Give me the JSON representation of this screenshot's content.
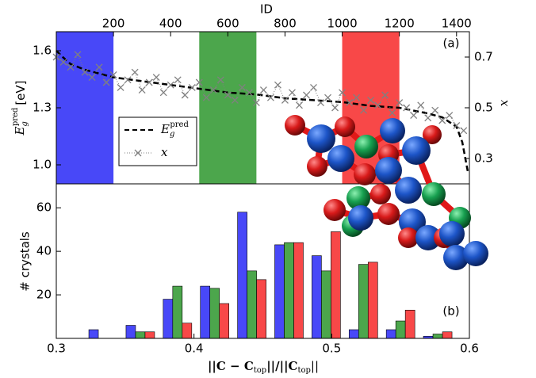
{
  "chart_data": [
    {
      "type": "line",
      "xlabel": "ID",
      "panel_label": "(a)",
      "ylabel": {
        "base": "E",
        "sub": "g",
        "sup": "pred",
        "unit": "[eV]"
      },
      "y2label": "x",
      "xlim": [
        0,
        1445
      ],
      "xticks": [
        200,
        400,
        600,
        800,
        1000,
        1200,
        1400
      ],
      "ylim": [
        0.9,
        1.7
      ],
      "yticks": [
        {
          "value": 1,
          "label": "1.0"
        },
        1.3,
        1.6
      ],
      "y2lim": [
        0.2,
        0.8
      ],
      "y2ticks": [
        0.3,
        0.5,
        0.7
      ],
      "spans": [
        {
          "x": [
            0,
            200
          ],
          "color": "#4848f8"
        },
        {
          "x": [
            500,
            700
          ],
          "color": "#4ca64c"
        },
        {
          "x": [
            1000,
            1200
          ],
          "color": "#f84848"
        }
      ],
      "legend": "center left",
      "series": [
        {
          "name": "E",
          "name_sub": "g",
          "name_sup": "pred",
          "color": "#000000",
          "style": "dashed",
          "x": [
            0,
            20,
            50,
            100,
            150,
            200,
            300,
            400,
            500,
            600,
            700,
            800,
            900,
            1000,
            1100,
            1200,
            1300,
            1350,
            1400,
            1420,
            1440
          ],
          "values": [
            1.6,
            1.57,
            1.53,
            1.5,
            1.48,
            1.46,
            1.44,
            1.42,
            1.4,
            1.38,
            1.37,
            1.35,
            1.34,
            1.33,
            1.31,
            1.3,
            1.27,
            1.25,
            1.2,
            1.12,
            0.96
          ]
        },
        {
          "name": "x",
          "color": "#808080",
          "style": "dotted",
          "marker": "x",
          "axis": "y2",
          "x": [
            0,
            25,
            50,
            75,
            100,
            125,
            150,
            175,
            200,
            225,
            250,
            275,
            300,
            325,
            350,
            375,
            400,
            425,
            450,
            475,
            500,
            525,
            550,
            575,
            600,
            625,
            650,
            675,
            700,
            725,
            750,
            775,
            800,
            825,
            850,
            875,
            900,
            925,
            950,
            975,
            1000,
            1025,
            1050,
            1075,
            1100,
            1125,
            1150,
            1175,
            1200,
            1225,
            1250,
            1275,
            1300,
            1325,
            1350,
            1375,
            1400,
            1425
          ],
          "values": [
            0.7,
            0.68,
            0.66,
            0.71,
            0.64,
            0.62,
            0.66,
            0.6,
            0.63,
            0.58,
            0.61,
            0.64,
            0.57,
            0.6,
            0.62,
            0.56,
            0.59,
            0.61,
            0.55,
            0.58,
            0.6,
            0.54,
            0.57,
            0.61,
            0.55,
            0.53,
            0.58,
            0.56,
            0.52,
            0.57,
            0.54,
            0.59,
            0.53,
            0.56,
            0.51,
            0.55,
            0.58,
            0.52,
            0.54,
            0.5,
            0.56,
            0.52,
            0.54,
            0.49,
            0.53,
            0.51,
            0.55,
            0.48,
            0.52,
            0.5,
            0.47,
            0.51,
            0.46,
            0.49,
            0.45,
            0.47,
            0.43,
            0.41
          ]
        }
      ]
    },
    {
      "type": "bar",
      "panel_label": "(b)",
      "ylabel": "# crystals",
      "xlabel": [
        "||C − C",
        "top",
        "||/||C",
        "top",
        "||"
      ],
      "xlim": [
        0.3,
        0.6
      ],
      "xticks": [
        0.3,
        0.4,
        0.5,
        0.6
      ],
      "ylim": [
        0,
        71
      ],
      "yticks": [
        20,
        40,
        60
      ],
      "x": [
        0.334,
        0.361,
        0.388,
        0.415,
        0.442,
        0.469,
        0.496,
        0.523,
        0.55,
        0.577
      ],
      "series": [
        {
          "color": "#4848f8",
          "values": [
            4,
            6,
            18,
            24,
            58,
            43,
            38,
            4,
            4,
            1
          ]
        },
        {
          "color": "#4ca64c",
          "values": [
            0,
            3,
            24,
            23,
            31,
            44,
            31,
            34,
            8,
            2
          ]
        },
        {
          "color": "#f84848",
          "values": [
            0,
            3,
            7,
            16,
            27,
            44,
            49,
            35,
            13,
            3
          ]
        }
      ]
    }
  ]
}
